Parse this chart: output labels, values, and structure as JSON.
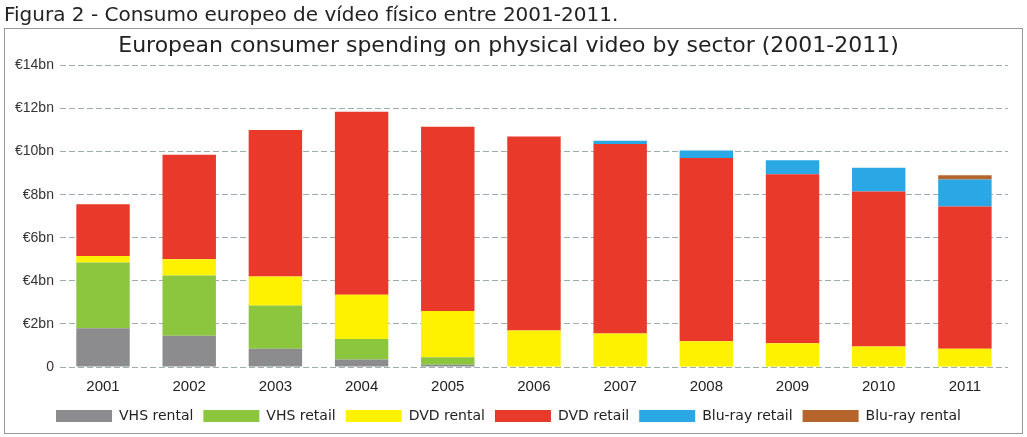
{
  "chart_data": {
    "type": "bar",
    "title": "Figura 2 - Consumo europeo de vídeo físico entre 2001-2011.",
    "subtitle": "European consumer spending on physical video by sector (2001-2011)",
    "categories": [
      "2001",
      "2002",
      "2003",
      "2004",
      "2005",
      "2006",
      "2007",
      "2008",
      "2009",
      "2010",
      "2011"
    ],
    "stacked": true,
    "series": [
      {
        "name": "VHS rental",
        "color": "#8c8c8e",
        "values": [
          1.8,
          1.45,
          0.85,
          0.35,
          0.1,
          null,
          null,
          null,
          null,
          null,
          null
        ]
      },
      {
        "name": "VHS retail",
        "color": "#8cc63f",
        "values": [
          3.05,
          2.8,
          2.0,
          0.95,
          0.35,
          null,
          null,
          null,
          null,
          null,
          null
        ]
      },
      {
        "name": "DVD rental",
        "color": "#fff200",
        "values": [
          0.3,
          0.75,
          1.35,
          2.05,
          2.15,
          1.7,
          1.55,
          1.2,
          1.1,
          0.95,
          0.85
        ]
      },
      {
        "name": "DVD retail",
        "color": "#e8392a",
        "values": [
          2.4,
          4.85,
          6.8,
          8.5,
          8.55,
          9.0,
          8.8,
          8.5,
          7.85,
          7.2,
          6.6
        ]
      },
      {
        "name": "Blu-ray retail",
        "color": "#2aa8e6",
        "values": [
          null,
          null,
          null,
          null,
          null,
          null,
          0.15,
          0.35,
          0.65,
          1.1,
          1.25
        ]
      },
      {
        "name": "Blu-ray rental",
        "color": "#b5652c",
        "values": [
          null,
          null,
          null,
          null,
          null,
          null,
          null,
          null,
          null,
          null,
          0.2
        ]
      }
    ],
    "ylim": [
      0,
      14
    ],
    "yticks": [
      {
        "value": 0,
        "label": "0"
      },
      {
        "value": 2,
        "label": "€2bn"
      },
      {
        "value": 4,
        "label": "€4bn"
      },
      {
        "value": 6,
        "label": "€6bn"
      },
      {
        "value": 8,
        "label": "€8bn"
      },
      {
        "value": 10,
        "label": "€10bn"
      },
      {
        "value": 12,
        "label": "€12bn"
      },
      {
        "value": 14,
        "label": "€14bn"
      }
    ],
    "grid": "y",
    "legend": "bottom"
  }
}
